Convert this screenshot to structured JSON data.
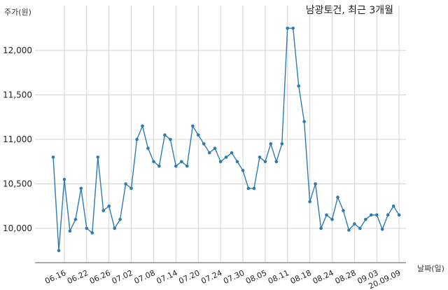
{
  "chart_data": {
    "type": "line",
    "title": "남광토건, 최근 3개월",
    "ylabel": "주가(원)",
    "xlabel": "날짜(일)",
    "ylim": [
      9400,
      12600
    ],
    "yticks": [
      10000,
      10500,
      11000,
      11500,
      12000
    ],
    "ytick_labels": [
      "10,000",
      "10,500",
      "11,000",
      "11,500",
      "12,000"
    ],
    "xtick_labels": [
      "06.16",
      "06.22",
      "06.26",
      "07.02",
      "07.08",
      "07.14",
      "07.20",
      "07.24",
      "07.30",
      "08.05",
      "08.11",
      "08.18",
      "08.24",
      "08.28",
      "09.03",
      "20.09.09"
    ],
    "xtick_index": [
      2,
      6,
      10,
      14,
      18,
      22,
      26,
      30,
      34,
      38,
      42,
      46,
      50,
      54,
      58,
      62
    ],
    "grid": true,
    "line_color": "#2e7bb0",
    "series": [
      {
        "values": [
          10800,
          9750,
          10550,
          9970,
          10100,
          10450,
          10000,
          9950,
          10800,
          10200,
          10250,
          10000,
          10100,
          10500,
          10450,
          11000,
          11150,
          10900,
          10750,
          10700,
          11050,
          11000,
          10700,
          10750,
          10700,
          11150,
          11050,
          10950,
          10850,
          10900,
          10750,
          10800,
          10850,
          10750,
          10650,
          10450,
          10450,
          10800,
          10750,
          10950,
          10750,
          10950,
          12250,
          12250,
          11600,
          11200,
          10300,
          10500,
          10000,
          10150,
          10100,
          10350,
          10200,
          9980,
          10050,
          10000,
          10100,
          10150,
          10150,
          9990,
          10150,
          10250,
          10150
        ]
      }
    ]
  }
}
